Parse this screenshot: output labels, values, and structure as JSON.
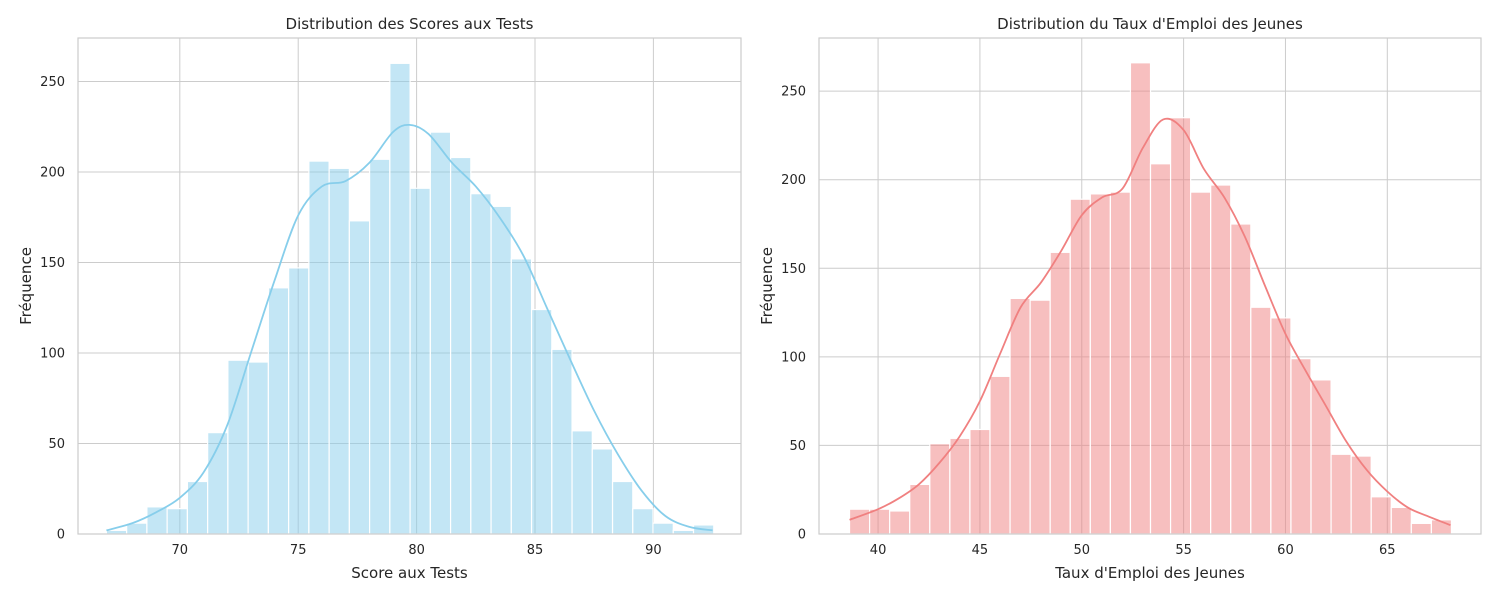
{
  "chart_data": [
    {
      "type": "bar",
      "subtype": "histogram-with-kde",
      "title": "Distribution des Scores aux Tests",
      "xlabel": "Score aux Tests",
      "ylabel": "Fréquence",
      "xlim": [
        65.7,
        93.7
      ],
      "ylim": [
        0,
        274
      ],
      "xticks": [
        70,
        75,
        80,
        85,
        90
      ],
      "yticks": [
        0,
        50,
        100,
        150,
        200,
        250
      ],
      "grid": true,
      "legend": "none",
      "bar_color": "#87ceeb",
      "kde_color": "#87ceeb",
      "bin_start": 66.9,
      "bin_width": 0.855,
      "counts": [
        2,
        6,
        15,
        14,
        29,
        56,
        96,
        95,
        136,
        147,
        206,
        202,
        173,
        207,
        260,
        191,
        222,
        208,
        188,
        181,
        152,
        124,
        102,
        57,
        47,
        29,
        14,
        6,
        2,
        5
      ],
      "kde": {
        "x": [
          66.9,
          68,
          69,
          70,
          71,
          72,
          73,
          74,
          75,
          76,
          77,
          78,
          79,
          79.7,
          80.5,
          81.5,
          82.5,
          83.5,
          84.5,
          85.5,
          86.5,
          87.5,
          88.5,
          89.5,
          90.5,
          91.5,
          92.5
        ],
        "y": [
          2,
          6,
          12,
          20,
          34,
          60,
          100,
          140,
          176,
          192,
          195,
          205,
          222,
          226,
          221,
          205,
          192,
          175,
          154,
          125,
          96,
          68,
          44,
          24,
          10,
          4,
          2
        ]
      }
    },
    {
      "type": "bar",
      "subtype": "histogram-with-kde",
      "title": "Distribution du Taux d'Emploi des Jeunes",
      "xlabel": "Taux d'Emploi des Jeunes",
      "ylabel": "Fréquence",
      "xlim": [
        37.1,
        69.6
      ],
      "ylim": [
        0,
        280
      ],
      "xticks": [
        40,
        45,
        50,
        55,
        60,
        65
      ],
      "yticks": [
        0,
        50,
        100,
        150,
        200,
        250
      ],
      "grid": true,
      "legend": "none",
      "bar_color": "#f08080",
      "kde_color": "#f08080",
      "bin_start": 38.6,
      "bin_width": 0.985,
      "counts": [
        14,
        14,
        13,
        28,
        51,
        54,
        59,
        89,
        133,
        132,
        159,
        189,
        192,
        193,
        266,
        209,
        235,
        193,
        197,
        175,
        128,
        122,
        99,
        87,
        45,
        44,
        21,
        15,
        6,
        8
      ],
      "kde": {
        "x": [
          38.6,
          40,
          41,
          42,
          43,
          44,
          45,
          46,
          47,
          48,
          49,
          50,
          51,
          52,
          53,
          54,
          55,
          56,
          57,
          58,
          59,
          60,
          61,
          62,
          63,
          64,
          65,
          66,
          67,
          68.1
        ],
        "y": [
          8,
          14,
          20,
          28,
          40,
          55,
          75,
          102,
          128,
          142,
          160,
          180,
          190,
          195,
          218,
          234,
          228,
          206,
          190,
          168,
          140,
          113,
          92,
          72,
          52,
          36,
          24,
          15,
          10,
          5
        ]
      }
    }
  ]
}
